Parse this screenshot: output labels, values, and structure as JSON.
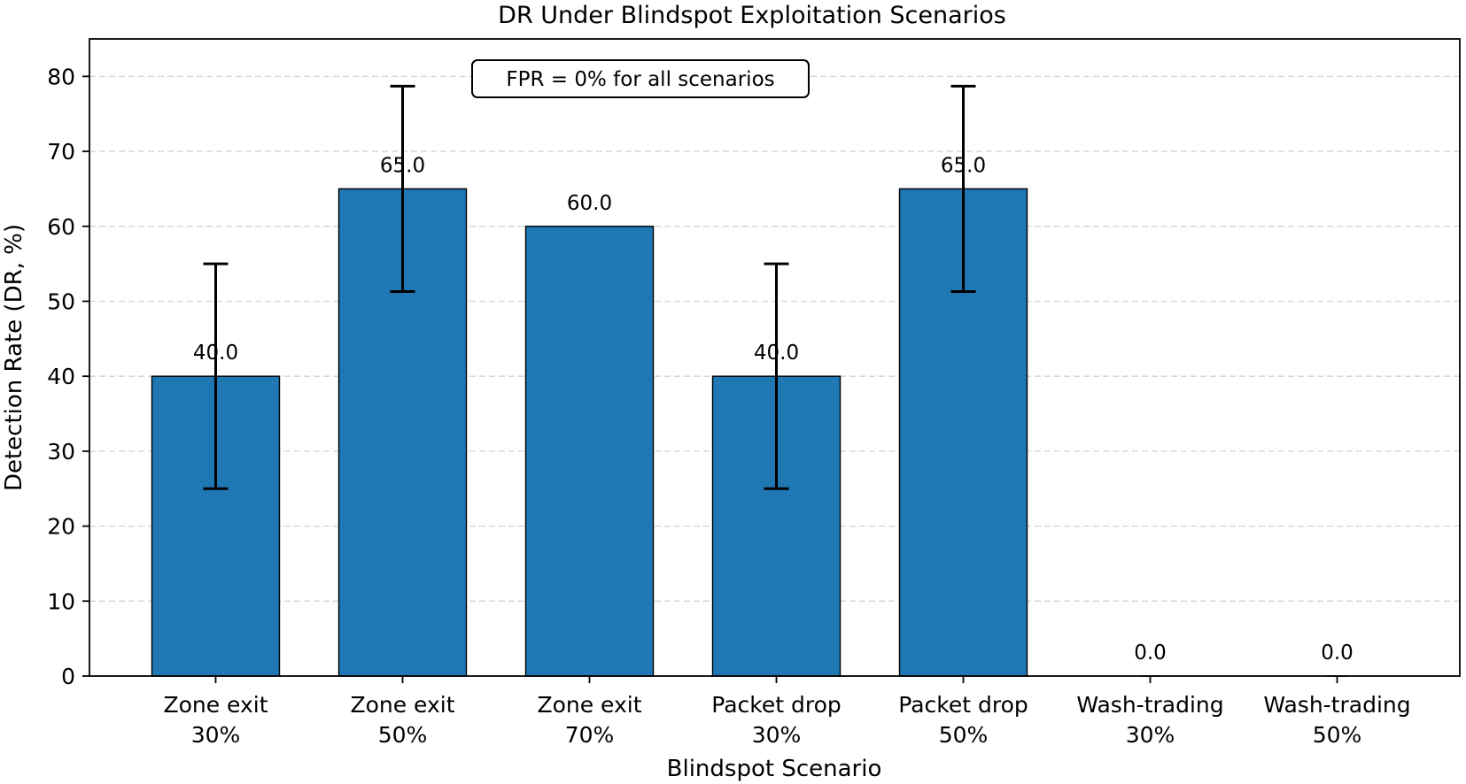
{
  "chart_data": {
    "type": "bar",
    "title": "DR Under Blindspot Exploitation Scenarios",
    "xlabel": "Blindspot Scenario",
    "ylabel": "Detection Rate (DR, %)",
    "categories": [
      [
        "Zone exit",
        "30%"
      ],
      [
        "Zone exit",
        "50%"
      ],
      [
        "Zone exit",
        "70%"
      ],
      [
        "Packet drop",
        "30%"
      ],
      [
        "Packet drop",
        "50%"
      ],
      [
        "Wash-trading",
        "30%"
      ],
      [
        "Wash-trading",
        "50%"
      ]
    ],
    "values": [
      40.0,
      65.0,
      60.0,
      40.0,
      65.0,
      0.0,
      0.0
    ],
    "error": [
      15.0,
      13.7,
      0.0,
      15.0,
      13.7,
      0.0,
      0.0
    ],
    "value_labels": [
      "40.0",
      "65.0",
      "60.0",
      "40.0",
      "65.0",
      "0.0",
      "0.0"
    ],
    "ylim": [
      0,
      85
    ],
    "yticks": [
      0,
      10,
      20,
      30,
      40,
      50,
      60,
      70,
      80
    ],
    "grid": "y-dashed",
    "bar_color": "#1f77b4",
    "annotation": "FPR = 0% for all scenarios"
  }
}
